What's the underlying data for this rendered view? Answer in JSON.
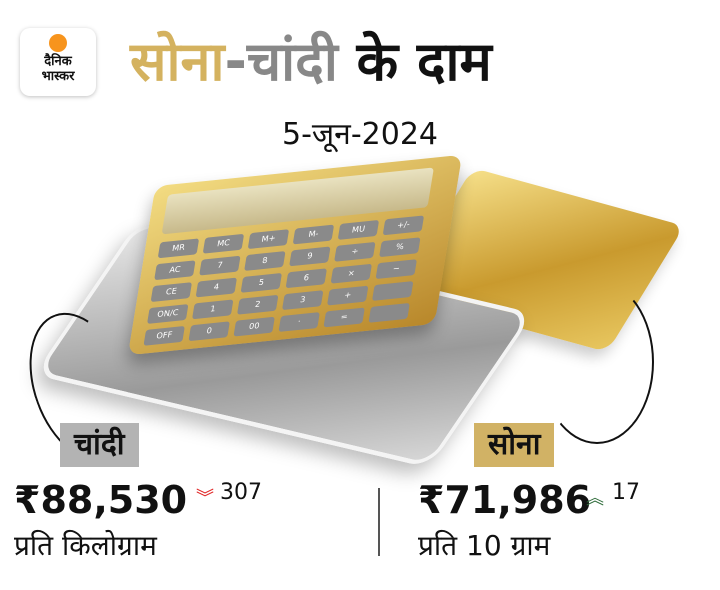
{
  "logo": {
    "line1": "दैनिक",
    "line2": "भास्कर"
  },
  "title": {
    "part1": "सोना",
    "part2": "-चांदी",
    "part3": " के दाम"
  },
  "date": "5-जून-2024",
  "calculator_keys": [
    "MR",
    "MC",
    "M+",
    "M-",
    "MU",
    "+/-",
    "AC",
    "7",
    "8",
    "9",
    "÷",
    "%",
    "CE",
    "4",
    "5",
    "6",
    "×",
    "−",
    "ON/C",
    "1",
    "2",
    "3",
    "+",
    "",
    "OFF",
    "0",
    "00",
    "·",
    "=",
    ""
  ],
  "silver": {
    "label": "चांदी",
    "price": "₹88,530",
    "change": "307",
    "direction": "down",
    "unit": "प्रति किलोग्राम",
    "color": "#b3b3b3"
  },
  "gold": {
    "label": "सोना",
    "price": "₹71,986",
    "change": "17",
    "direction": "up",
    "unit": "प्रति 10 ग्राम",
    "color": "#d1b265"
  },
  "colors": {
    "down": "#e02424",
    "up": "#2e6b3a"
  }
}
